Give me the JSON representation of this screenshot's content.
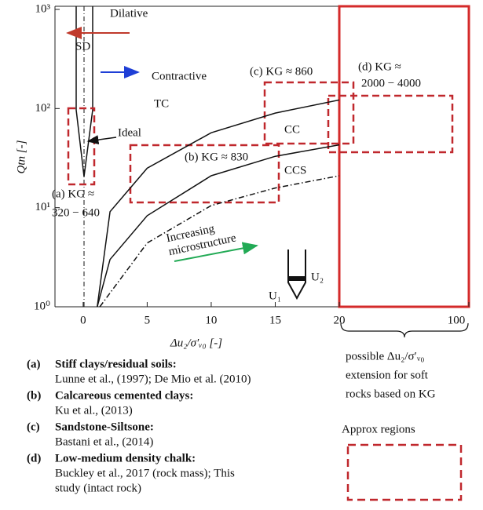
{
  "chart_data": {
    "type": "line",
    "y_label": "Qtn [-]",
    "x_label": "Δu₂/σ′ᵥ₀ [-]",
    "xlim": [
      -2.2,
      20
    ],
    "xticks": [
      0,
      5,
      10,
      15
    ],
    "ylim": [
      1,
      1000
    ],
    "yticks": [
      {
        "value": 1,
        "label": "10⁰"
      },
      {
        "value": 10,
        "label": "10¹"
      },
      {
        "value": 100,
        "label": "10²"
      },
      {
        "value": 1000,
        "label": "10³"
      }
    ],
    "log_y": true,
    "extension_xticks": [
      20,
      100
    ],
    "series": [
      {
        "color": "#111111",
        "dash": "solid",
        "x": [
          1.1,
          2.1,
          5,
          10,
          15,
          20
        ],
        "values": [
          1,
          9.1,
          25,
          57,
          90,
          122
        ]
      },
      {
        "color": "#111111",
        "dash": "solid",
        "x": [
          1.1,
          2.1,
          5,
          10,
          15,
          20
        ],
        "values": [
          1,
          3.0,
          8.3,
          21,
          33,
          43
        ]
      },
      {
        "color": "#111111",
        "dash": "dashdot",
        "x": [
          1.3,
          5,
          10,
          15,
          20
        ],
        "values": [
          1,
          4.4,
          10.5,
          15.8,
          21
        ]
      }
    ],
    "annotations": {
      "dilative": "Dilative",
      "sd": "SD",
      "contractive": "Contractive",
      "tc": "TC",
      "ideal": "Ideal",
      "cc": "CC",
      "ccs": "CCS",
      "increasing": "Increasing",
      "microstructure": "microstructure",
      "a1": "(a) KG ≈",
      "a2": "320 − 640",
      "b": "(b) KG ≈ 830",
      "c": "(c) KG ≈ 860",
      "d1": "(d) KG ≈",
      "d2": "2000 − 4000",
      "u1": "U₁",
      "u2": "U₂",
      "ext1": "possible Δu₂/σ′ᵥ₀",
      "ext2": "extension for  soft",
      "ext3": "rocks based on KG",
      "approx": "Approx regions"
    },
    "legend_items": [
      {
        "key": "(a)",
        "title": "Stiff clays/residual soils:",
        "refs": [
          "Lunne et al., (1997); De Mio et al. (2010)"
        ]
      },
      {
        "key": "(b)",
        "title": "Calcareous cemented clays:",
        "refs": [
          "Ku et al., (2013)"
        ]
      },
      {
        "key": "(c)",
        "title": "Sandstone-Siltsone:",
        "refs": [
          "Bastani et al., (2014)"
        ]
      },
      {
        "key": "(d)",
        "title": "Low-medium density chalk:",
        "refs": [
          "Buckley et al., 2017 (rock mass); This",
          "study (intact rock)"
        ]
      }
    ]
  }
}
